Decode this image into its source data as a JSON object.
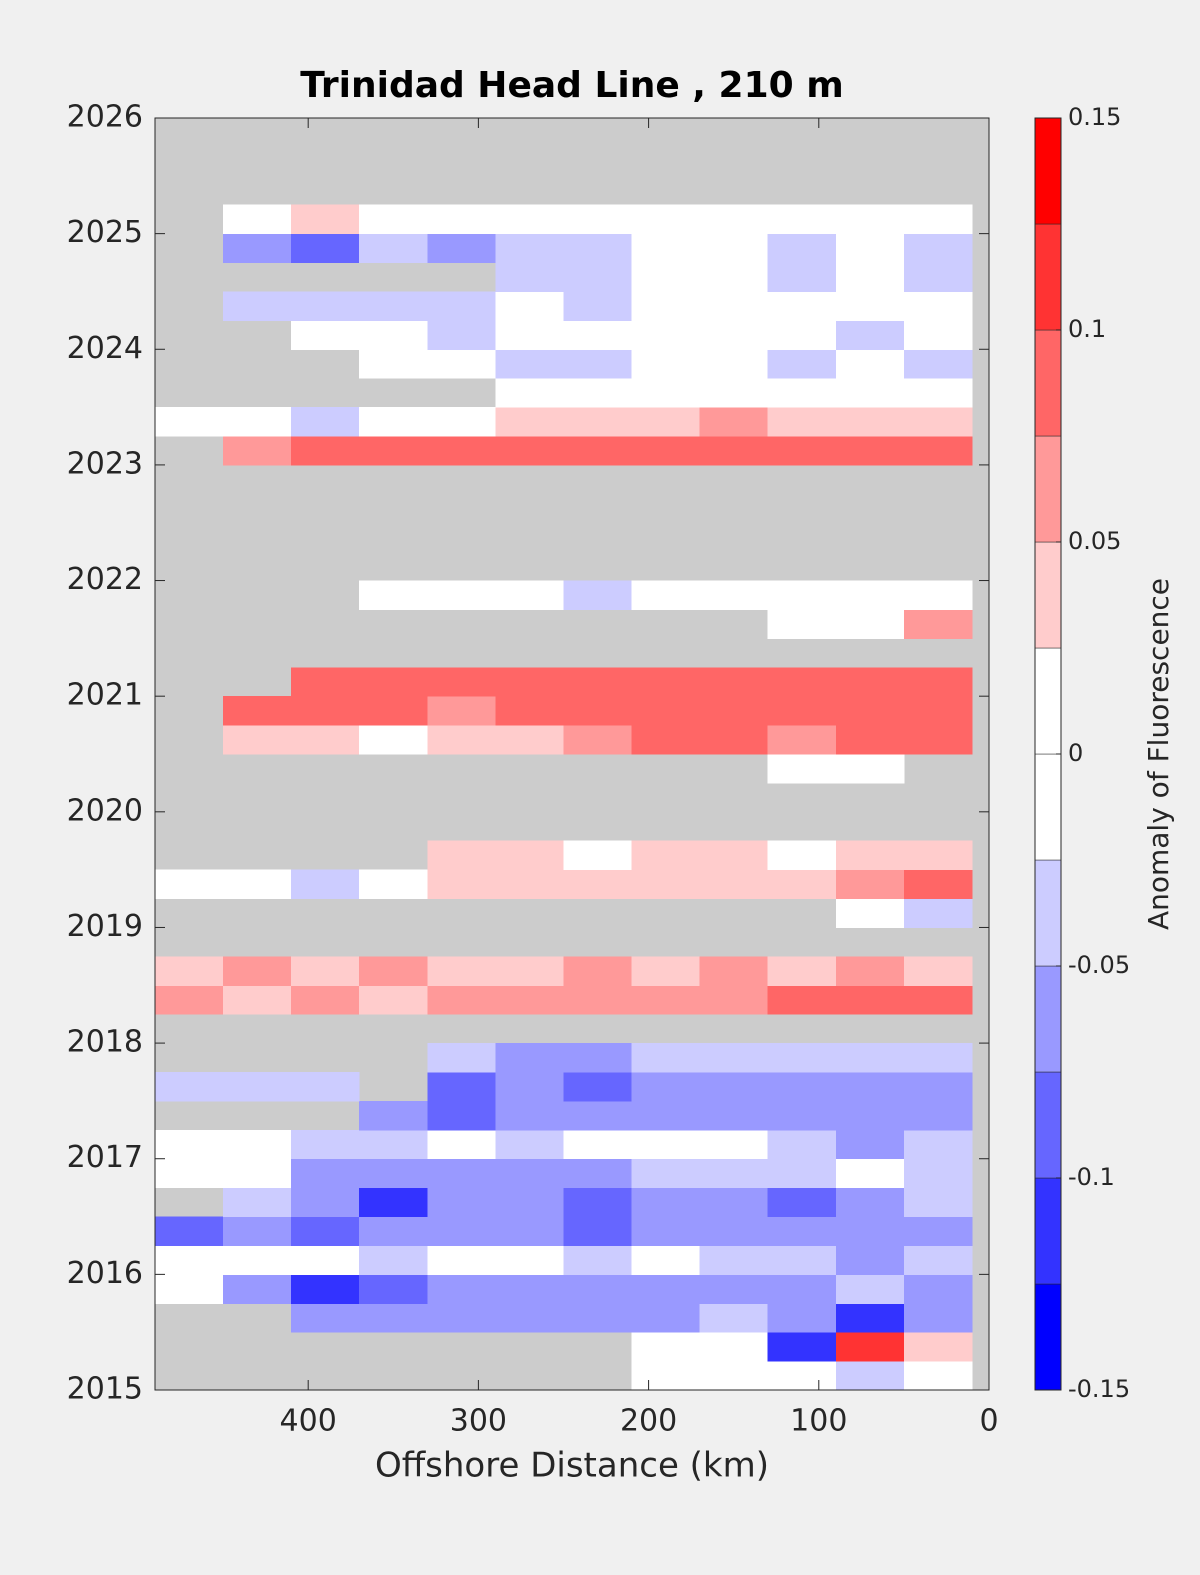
{
  "chart_data": {
    "type": "heatmap",
    "title": "Trinidad Head Line , 210 m",
    "xlabel": "Offshore Distance (km)",
    "xlim": [
      490,
      0
    ],
    "xticks": [
      400,
      300,
      200,
      100,
      0
    ],
    "ylim": [
      2015,
      2026
    ],
    "yticks": [
      2015,
      2016,
      2017,
      2018,
      2019,
      2020,
      2021,
      2022,
      2023,
      2024,
      2025,
      2026
    ],
    "missing_color": "#cccccc",
    "x": [
      470,
      430,
      390,
      350,
      310,
      270,
      230,
      190,
      150,
      110,
      70,
      30
    ],
    "y": [
      2015.125,
      2015.375,
      2015.625,
      2015.875,
      2016.125,
      2016.375,
      2016.625,
      2016.875,
      2017.125,
      2017.375,
      2017.625,
      2017.875,
      2018.125,
      2018.375,
      2018.625,
      2018.875,
      2019.125,
      2019.375,
      2019.625,
      2019.875,
      2020.125,
      2020.375,
      2020.625,
      2020.875,
      2021.125,
      2021.375,
      2021.625,
      2021.875,
      2022.125,
      2022.375,
      2022.625,
      2022.875,
      2023.125,
      2023.375,
      2023.625,
      2023.875,
      2024.125,
      2024.375,
      2024.625,
      2024.875,
      2025.125,
      2025.375,
      2025.625,
      2025.875
    ],
    "z": [
      [
        null,
        null,
        null,
        null,
        null,
        null,
        null,
        0,
        0,
        0,
        -0.03,
        0
      ],
      [
        null,
        null,
        null,
        null,
        null,
        null,
        null,
        0,
        0,
        -0.12,
        0.12,
        0.03
      ],
      [
        null,
        null,
        -0.06,
        -0.06,
        -0.07,
        -0.06,
        -0.07,
        -0.06,
        -0.04,
        -0.06,
        -0.12,
        -0.07
      ],
      [
        0,
        -0.06,
        -0.12,
        -0.08,
        -0.07,
        -0.07,
        -0.06,
        -0.06,
        -0.06,
        -0.06,
        -0.04,
        -0.06
      ],
      [
        0,
        0,
        0,
        -0.04,
        0,
        0,
        -0.04,
        0,
        -0.04,
        -0.04,
        -0.06,
        -0.04
      ],
      [
        -0.08,
        -0.07,
        -0.08,
        -0.07,
        -0.07,
        -0.06,
        -0.08,
        -0.06,
        -0.06,
        -0.06,
        -0.07,
        -0.06
      ],
      [
        null,
        -0.04,
        -0.06,
        -0.11,
        -0.06,
        -0.07,
        -0.08,
        -0.07,
        -0.06,
        -0.08,
        -0.06,
        -0.04
      ],
      [
        0,
        0,
        -0.06,
        -0.07,
        -0.06,
        -0.06,
        -0.06,
        -0.04,
        -0.04,
        -0.04,
        0,
        -0.04
      ],
      [
        0,
        0,
        -0.04,
        -0.04,
        0,
        -0.04,
        0,
        0,
        0,
        -0.04,
        -0.06,
        -0.04
      ],
      [
        null,
        null,
        null,
        -0.06,
        -0.08,
        -0.06,
        -0.07,
        -0.06,
        -0.06,
        -0.07,
        -0.06,
        -0.07
      ],
      [
        -0.04,
        -0.04,
        -0.04,
        null,
        -0.08,
        -0.06,
        -0.08,
        -0.06,
        -0.06,
        -0.06,
        -0.07,
        -0.06
      ],
      [
        null,
        null,
        null,
        null,
        -0.04,
        -0.06,
        -0.06,
        -0.04,
        -0.04,
        -0.04,
        -0.04,
        -0.04
      ],
      [
        null,
        null,
        null,
        null,
        null,
        null,
        null,
        null,
        null,
        null,
        null,
        null
      ],
      [
        0.06,
        0.04,
        0.06,
        0.04,
        0.06,
        0.06,
        0.07,
        0.06,
        0.07,
        0.08,
        0.08,
        0.08
      ],
      [
        0.04,
        0.06,
        0.04,
        0.06,
        0.04,
        0.04,
        0.06,
        0.04,
        0.06,
        0.04,
        0.06,
        0.04
      ],
      [
        null,
        null,
        null,
        null,
        null,
        null,
        null,
        null,
        null,
        null,
        null,
        null
      ],
      [
        null,
        null,
        null,
        null,
        null,
        null,
        null,
        null,
        null,
        null,
        0,
        -0.04
      ],
      [
        0,
        0,
        -0.04,
        0,
        0.04,
        0.04,
        0.04,
        0.04,
        0.04,
        0.04,
        0.06,
        0.08
      ],
      [
        null,
        null,
        null,
        null,
        0.04,
        0.04,
        0,
        0.04,
        0.04,
        0,
        0.04,
        0.04
      ],
      [
        null,
        null,
        null,
        null,
        null,
        null,
        null,
        null,
        null,
        null,
        null,
        null
      ],
      [
        null,
        null,
        null,
        null,
        null,
        null,
        null,
        null,
        null,
        null,
        null,
        null
      ],
      [
        null,
        null,
        null,
        null,
        null,
        null,
        null,
        null,
        null,
        0,
        0,
        null
      ],
      [
        null,
        0.04,
        0.04,
        0,
        0.04,
        0.04,
        0.06,
        0.08,
        0.08,
        0.06,
        0.08,
        0.09
      ],
      [
        null,
        0.08,
        0.08,
        0.09,
        0.06,
        0.08,
        0.08,
        0.09,
        0.08,
        0.08,
        0.08,
        0.09
      ],
      [
        null,
        null,
        0.08,
        0.08,
        0.08,
        0.09,
        0.08,
        0.08,
        0.08,
        0.08,
        0.08,
        0.08
      ],
      [
        null,
        null,
        null,
        null,
        null,
        null,
        null,
        null,
        null,
        null,
        null,
        null
      ],
      [
        null,
        null,
        null,
        null,
        null,
        null,
        null,
        null,
        null,
        0,
        0,
        0.06
      ],
      [
        null,
        null,
        null,
        0,
        0,
        0,
        -0.04,
        0,
        0,
        0,
        0,
        0
      ],
      [
        null,
        null,
        null,
        null,
        null,
        null,
        null,
        null,
        null,
        null,
        null,
        null
      ],
      [
        null,
        null,
        null,
        null,
        null,
        null,
        null,
        null,
        null,
        null,
        null,
        null
      ],
      [
        null,
        null,
        null,
        null,
        null,
        null,
        null,
        null,
        null,
        null,
        null,
        null
      ],
      [
        null,
        null,
        null,
        null,
        null,
        null,
        null,
        null,
        null,
        null,
        null,
        null
      ],
      [
        null,
        0.06,
        0.09,
        0.08,
        0.09,
        0.08,
        0.08,
        0.09,
        0.08,
        0.08,
        0.08,
        0.09
      ],
      [
        0,
        0,
        -0.04,
        0,
        0,
        0.04,
        0.04,
        0.04,
        0.06,
        0.04,
        0.04,
        0.04
      ],
      [
        null,
        null,
        null,
        null,
        null,
        0,
        0,
        0,
        0,
        0,
        0,
        0
      ],
      [
        null,
        null,
        null,
        0,
        0,
        -0.04,
        -0.04,
        0,
        0,
        -0.04,
        0,
        -0.04
      ],
      [
        null,
        null,
        0,
        0,
        -0.04,
        0,
        0,
        0,
        0,
        0,
        -0.04,
        0
      ],
      [
        null,
        -0.04,
        -0.04,
        -0.04,
        -0.04,
        0,
        -0.04,
        0,
        0,
        0,
        0,
        0
      ],
      [
        null,
        null,
        null,
        null,
        null,
        -0.04,
        -0.04,
        0,
        0,
        -0.04,
        0,
        -0.04
      ],
      [
        null,
        -0.06,
        -0.08,
        -0.04,
        -0.06,
        -0.04,
        -0.04,
        0,
        0,
        -0.04,
        0,
        -0.04
      ],
      [
        null,
        0,
        0.04,
        0,
        0,
        0,
        0,
        0,
        0,
        0,
        0,
        0
      ],
      [
        null,
        null,
        null,
        null,
        null,
        null,
        null,
        null,
        null,
        null,
        null,
        null
      ],
      [
        null,
        null,
        null,
        null,
        null,
        null,
        null,
        null,
        null,
        null,
        null,
        null
      ],
      [
        null,
        null,
        null,
        null,
        null,
        null,
        null,
        null,
        null,
        null,
        null,
        null
      ]
    ],
    "colorbar": {
      "label": "Anomaly of Fluorescence",
      "levels": [
        -0.15,
        -0.125,
        -0.1,
        -0.075,
        -0.05,
        -0.025,
        0,
        0.025,
        0.05,
        0.075,
        0.1,
        0.125,
        0.15
      ],
      "colors": [
        "#0000ff",
        "#3333ff",
        "#6666ff",
        "#9999ff",
        "#ccccff",
        "#ffffff",
        "#ffffff",
        "#ffcccc",
        "#ff9999",
        "#ff6666",
        "#ff3333",
        "#ff0000"
      ],
      "ticks": [
        -0.15,
        -0.1,
        -0.05,
        0,
        0.05,
        0.1,
        0.15
      ]
    }
  }
}
